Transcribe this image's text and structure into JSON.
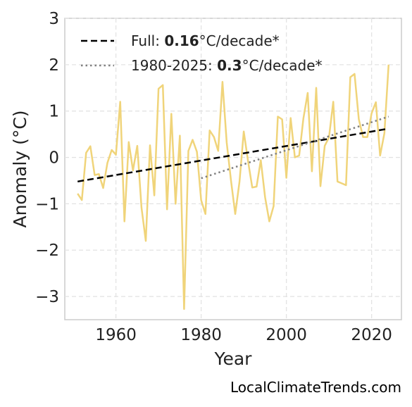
{
  "chart_data": {
    "type": "line",
    "xlabel": "Year",
    "ylabel": "Anomaly (°C)",
    "xlim": [
      1948,
      2027
    ],
    "ylim": [
      -3.5,
      3
    ],
    "xticks": [
      1960,
      1980,
      2000,
      2020
    ],
    "yticks": [
      -3,
      -2,
      -1,
      0,
      1,
      2,
      3
    ],
    "ytick_labels": [
      "−3",
      "−2",
      "−1",
      "0",
      "1",
      "2",
      "3"
    ],
    "grid": true,
    "legend_position": "top-left",
    "source_label": "LocalClimateTrends.com",
    "colors": {
      "anomaly": "#f0d47a",
      "full_trend": "#000000",
      "recent_trend": "#808080"
    },
    "series": [
      {
        "style": "solid",
        "x": [
          1951,
          1952,
          1953,
          1954,
          1955,
          1956,
          1957,
          1958,
          1959,
          1960,
          1961,
          1962,
          1963,
          1964,
          1965,
          1966,
          1967,
          1968,
          1969,
          1970,
          1971,
          1972,
          1973,
          1974,
          1975,
          1976,
          1977,
          1978,
          1979,
          1980,
          1981,
          1982,
          1983,
          1984,
          1985,
          1986,
          1987,
          1988,
          1989,
          1990,
          1991,
          1992,
          1993,
          1994,
          1995,
          1996,
          1997,
          1998,
          1999,
          2000,
          2001,
          2002,
          2003,
          2004,
          2005,
          2006,
          2007,
          2008,
          2009,
          2010,
          2011,
          2012,
          2013,
          2014,
          2015,
          2016,
          2017,
          2018,
          2019,
          2020,
          2021,
          2022,
          2023,
          2024
        ],
        "y": [
          -0.78,
          -0.92,
          0.1,
          0.24,
          -0.38,
          -0.36,
          -0.66,
          -0.12,
          0.16,
          0.06,
          1.2,
          -1.38,
          0.33,
          -0.28,
          0.25,
          -1.08,
          -1.8,
          0.26,
          -0.82,
          1.48,
          1.56,
          -1.12,
          0.94,
          -1.0,
          0.47,
          -3.27,
          0.14,
          0.38,
          0.12,
          -0.92,
          -1.22,
          0.58,
          0.44,
          0.14,
          1.63,
          0.32,
          -0.5,
          -1.22,
          -0.52,
          0.56,
          -0.08,
          -0.65,
          -0.63,
          -0.06,
          -0.86,
          -1.38,
          -1.05,
          0.88,
          0.82,
          -0.44,
          0.85,
          0.0,
          0.04,
          0.84,
          1.39,
          -0.3,
          1.5,
          -0.62,
          0.25,
          0.43,
          1.2,
          -0.52,
          -0.56,
          -0.6,
          1.73,
          1.8,
          0.82,
          0.44,
          0.44,
          0.95,
          1.19,
          0.04,
          0.52,
          2.0
        ]
      },
      {
        "name": "Full",
        "style": "dashed",
        "rate": "0.16",
        "unit": "°C/decade*",
        "x": [
          1951,
          2024
        ],
        "y": [
          -0.52,
          0.62
        ]
      },
      {
        "name": "1980-2025",
        "style": "dotted",
        "rate": "0.3",
        "unit": "°C/decade*",
        "x": [
          1980,
          2024
        ],
        "y": [
          -0.45,
          0.88
        ]
      }
    ]
  }
}
